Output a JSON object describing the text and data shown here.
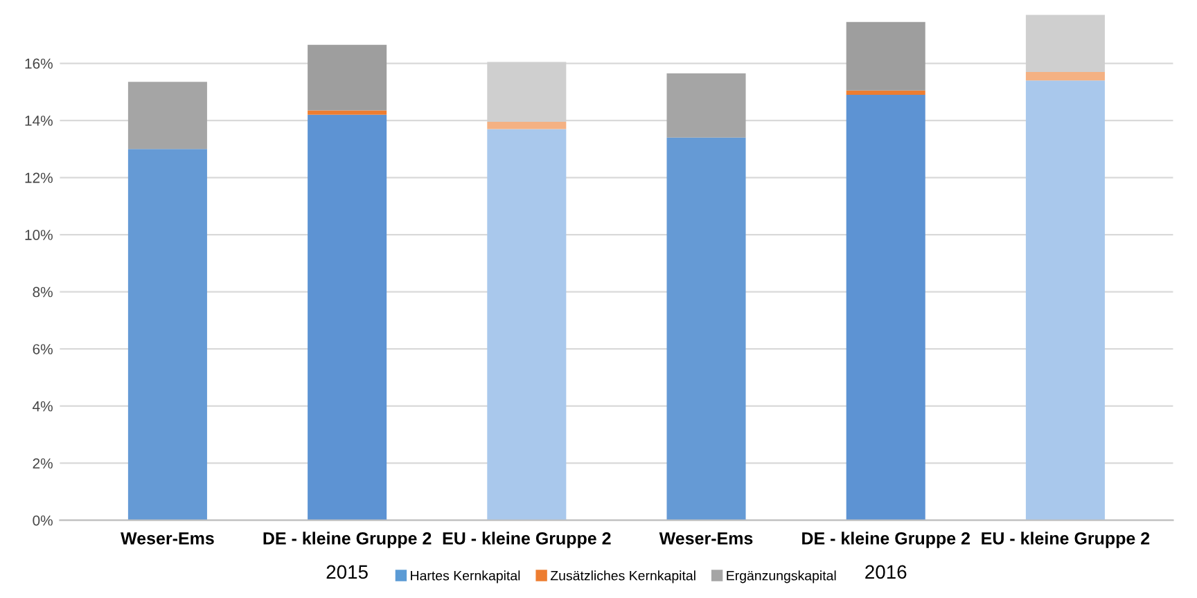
{
  "chart_data": {
    "type": "bar",
    "stacked": true,
    "categories": [
      "Weser-Ems",
      "DE - kleine Gruppe 2",
      "EU - kleine Gruppe 2",
      "Weser-Ems",
      "DE - kleine Gruppe 2",
      "EU - kleine Gruppe 2"
    ],
    "series": [
      {
        "name": "Hartes Kernkapital",
        "color": "#5b9bd5",
        "colors": [
          "#659ad5",
          "#5d93d3",
          "#a9c8ec",
          "#659ad5",
          "#5d93d3",
          "#a9c8ec"
        ],
        "values": [
          13.0,
          14.2,
          13.7,
          13.4,
          14.9,
          15.4
        ]
      },
      {
        "name": "Zusätzliches Kernkapital",
        "color": "#ed7d31",
        "colors": [
          "#ed7d31",
          "#ed7d31",
          "#f4b183",
          "#ed7d31",
          "#ed7d31",
          "#f4b183"
        ],
        "values": [
          0,
          0.15,
          0.25,
          0,
          0.15,
          0.3
        ]
      },
      {
        "name": "Ergänzungskapital",
        "color": "#a5a5a5",
        "colors": [
          "#a5a5a5",
          "#9e9e9e",
          "#cfcfcf",
          "#a5a5a5",
          "#9e9e9e",
          "#cfcfcf"
        ],
        "values": [
          2.35,
          2.3,
          2.1,
          2.25,
          2.4,
          2.0
        ]
      }
    ],
    "ylim": [
      0,
      17.8
    ],
    "yticks": [
      {
        "value": 0,
        "label": "0%"
      },
      {
        "value": 2,
        "label": "2%"
      },
      {
        "value": 4,
        "label": "4%"
      },
      {
        "value": 6,
        "label": "6%"
      },
      {
        "value": 8,
        "label": "8%"
      },
      {
        "value": 10,
        "label": "10%"
      },
      {
        "value": 12,
        "label": "12%"
      },
      {
        "value": 14,
        "label": "14%"
      },
      {
        "value": 16,
        "label": "16%"
      }
    ],
    "grid": "y",
    "legend": "bottom",
    "annotations": [
      "2015",
      "2016"
    ]
  }
}
